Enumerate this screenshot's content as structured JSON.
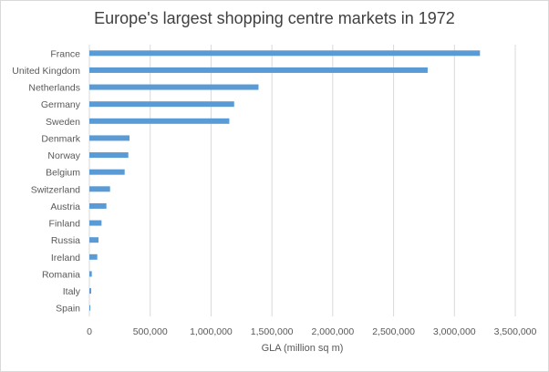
{
  "chart_data": {
    "type": "bar",
    "orientation": "horizontal",
    "title": "Europe's largest shopping centre markets in  1972",
    "xlabel": "GLA  (million sq m)",
    "ylabel": "",
    "categories": [
      "France",
      "United Kingdom",
      "Netherlands",
      "Germany",
      "Sweden",
      "Denmark",
      "Norway",
      "Belgium",
      "Switzerland",
      "Austria",
      "Finland",
      "Russia",
      "Ireland",
      "Romania",
      "Italy",
      "Spain"
    ],
    "values": [
      3210000,
      2780000,
      1390000,
      1190000,
      1150000,
      330000,
      320000,
      290000,
      170000,
      140000,
      100000,
      75000,
      65000,
      20000,
      15000,
      8000
    ],
    "xlim": [
      0,
      3500000
    ],
    "xticks": [
      0,
      500000,
      1000000,
      1500000,
      2000000,
      2500000,
      3000000,
      3500000
    ],
    "xtick_labels": [
      "0",
      "500,000",
      "1,000,000",
      "1,500,000",
      "2,000,000",
      "2,500,000",
      "3,000,000",
      "3,500,000"
    ],
    "grid": true,
    "legend": "none",
    "bar_color": "#5b9bd5",
    "grid_color": "#d9d9d9"
  }
}
